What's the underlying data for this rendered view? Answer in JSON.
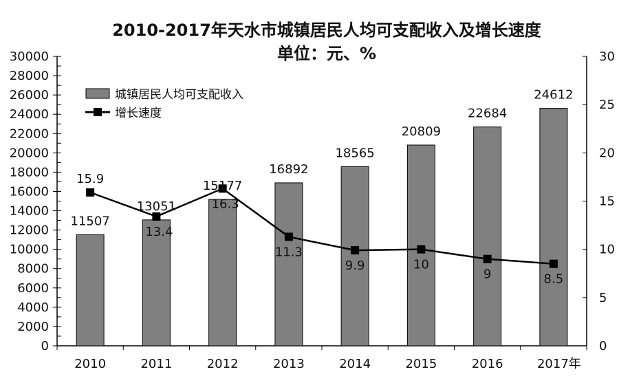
{
  "chart_data": {
    "type": "bar+line",
    "title": "2010-2017年天水市城镇居民人均可支配收入及增长速度",
    "subtitle": "单位：元、%",
    "categories": [
      "2010",
      "2011",
      "2012",
      "2013",
      "2014",
      "2015",
      "2016",
      "2017年"
    ],
    "series": [
      {
        "name": "城镇居民人均可支配收入",
        "type": "bar",
        "axis": "left",
        "color": "#808080",
        "values": [
          11507,
          13051,
          15177,
          16892,
          18565,
          20809,
          22684,
          24612
        ]
      },
      {
        "name": "增长速度",
        "type": "line",
        "axis": "right",
        "color": "#000000",
        "values": [
          15.9,
          13.4,
          16.3,
          11.3,
          9.9,
          10,
          9,
          8.5
        ]
      }
    ],
    "left_axis": {
      "ylim": [
        0,
        30000
      ],
      "ticks": [
        "0",
        "2000",
        "4000",
        "6000",
        "8000",
        "10000",
        "12000",
        "14000",
        "16000",
        "18000",
        "20000",
        "22000",
        "24000",
        "26000",
        "28000",
        "30000"
      ]
    },
    "right_axis": {
      "ylim": [
        0,
        30
      ],
      "ticks": [
        "0",
        "5",
        "10",
        "15",
        "20",
        "25",
        "30"
      ]
    },
    "legend_position": "top-left",
    "grid": false
  }
}
